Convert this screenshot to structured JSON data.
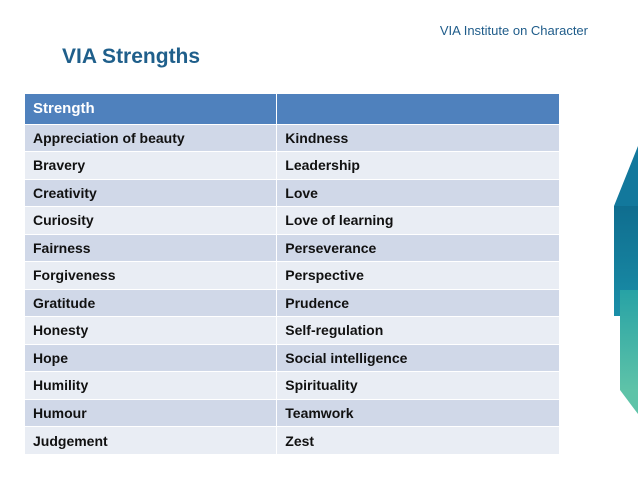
{
  "header": {
    "org": "VIA Institute on Character",
    "title": "VIA Strengths"
  },
  "colors": {
    "title": "#1f5f8b",
    "table_header_bg": "#4f81bd",
    "row_odd_bg": "#d0d8e8",
    "row_even_bg": "#e9edf4",
    "accent": "#12789c"
  },
  "table": {
    "header": [
      "Strength",
      ""
    ],
    "rows": [
      [
        "Appreciation of beauty",
        "Kindness"
      ],
      [
        "Bravery",
        "Leadership"
      ],
      [
        "Creativity",
        "Love"
      ],
      [
        "Curiosity",
        "Love of learning"
      ],
      [
        "Fairness",
        "Perseverance"
      ],
      [
        "Forgiveness",
        "Perspective"
      ],
      [
        "Gratitude",
        "Prudence"
      ],
      [
        "Honesty",
        "Self-regulation"
      ],
      [
        "Hope",
        "Social intelligence"
      ],
      [
        "Humility",
        "Spirituality"
      ],
      [
        "Humour",
        "Teamwork"
      ],
      [
        "Judgement",
        "Zest"
      ]
    ]
  }
}
